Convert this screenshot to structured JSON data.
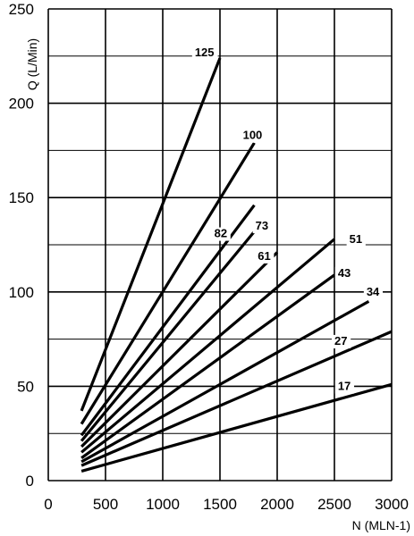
{
  "chart_data": {
    "type": "line",
    "title": "",
    "xlabel": "N (MLN-1)",
    "ylabel": "Q (L/Min)",
    "xlim": [
      0,
      3000
    ],
    "ylim": [
      0,
      250
    ],
    "x_ticks": [
      0,
      500,
      1000,
      1500,
      2000,
      2500,
      3000
    ],
    "y_ticks": [
      0,
      50,
      100,
      150,
      200,
      250
    ],
    "grid": true,
    "legend": "none",
    "line_color": "#000000",
    "series": [
      {
        "name": "125",
        "x": [
          290,
          1500
        ],
        "y": [
          37,
          224
        ]
      },
      {
        "name": "100",
        "x": [
          290,
          1800
        ],
        "y": [
          30,
          179
        ]
      },
      {
        "name": "82",
        "x": [
          290,
          1800
        ],
        "y": [
          24,
          146
        ]
      },
      {
        "name": "73",
        "x": [
          290,
          1800
        ],
        "y": [
          21,
          132
        ]
      },
      {
        "name": "61",
        "x": [
          290,
          2000
        ],
        "y": [
          18,
          121
        ]
      },
      {
        "name": "51",
        "x": [
          290,
          2500
        ],
        "y": [
          15,
          128
        ]
      },
      {
        "name": "43",
        "x": [
          290,
          2500
        ],
        "y": [
          12,
          109
        ]
      },
      {
        "name": "34",
        "x": [
          290,
          2800
        ],
        "y": [
          10,
          95
        ]
      },
      {
        "name": "27",
        "x": [
          290,
          3000
        ],
        "y": [
          8,
          79
        ]
      },
      {
        "name": "17",
        "x": [
          290,
          3000
        ],
        "y": [
          5,
          51
        ]
      }
    ],
    "annotations": [
      {
        "text": "125",
        "x": 1280,
        "y": 225
      },
      {
        "text": "100",
        "x": 1700,
        "y": 181
      },
      {
        "text": "82",
        "x": 1450,
        "y": 129
      },
      {
        "text": "73",
        "x": 1810,
        "y": 133
      },
      {
        "text": "61",
        "x": 1830,
        "y": 117
      },
      {
        "text": "51",
        "x": 2630,
        "y": 126
      },
      {
        "text": "43",
        "x": 2530,
        "y": 108
      },
      {
        "text": "34",
        "x": 2780,
        "y": 98
      },
      {
        "text": "27",
        "x": 2500,
        "y": 72
      },
      {
        "text": "17",
        "x": 2530,
        "y": 48
      }
    ]
  }
}
